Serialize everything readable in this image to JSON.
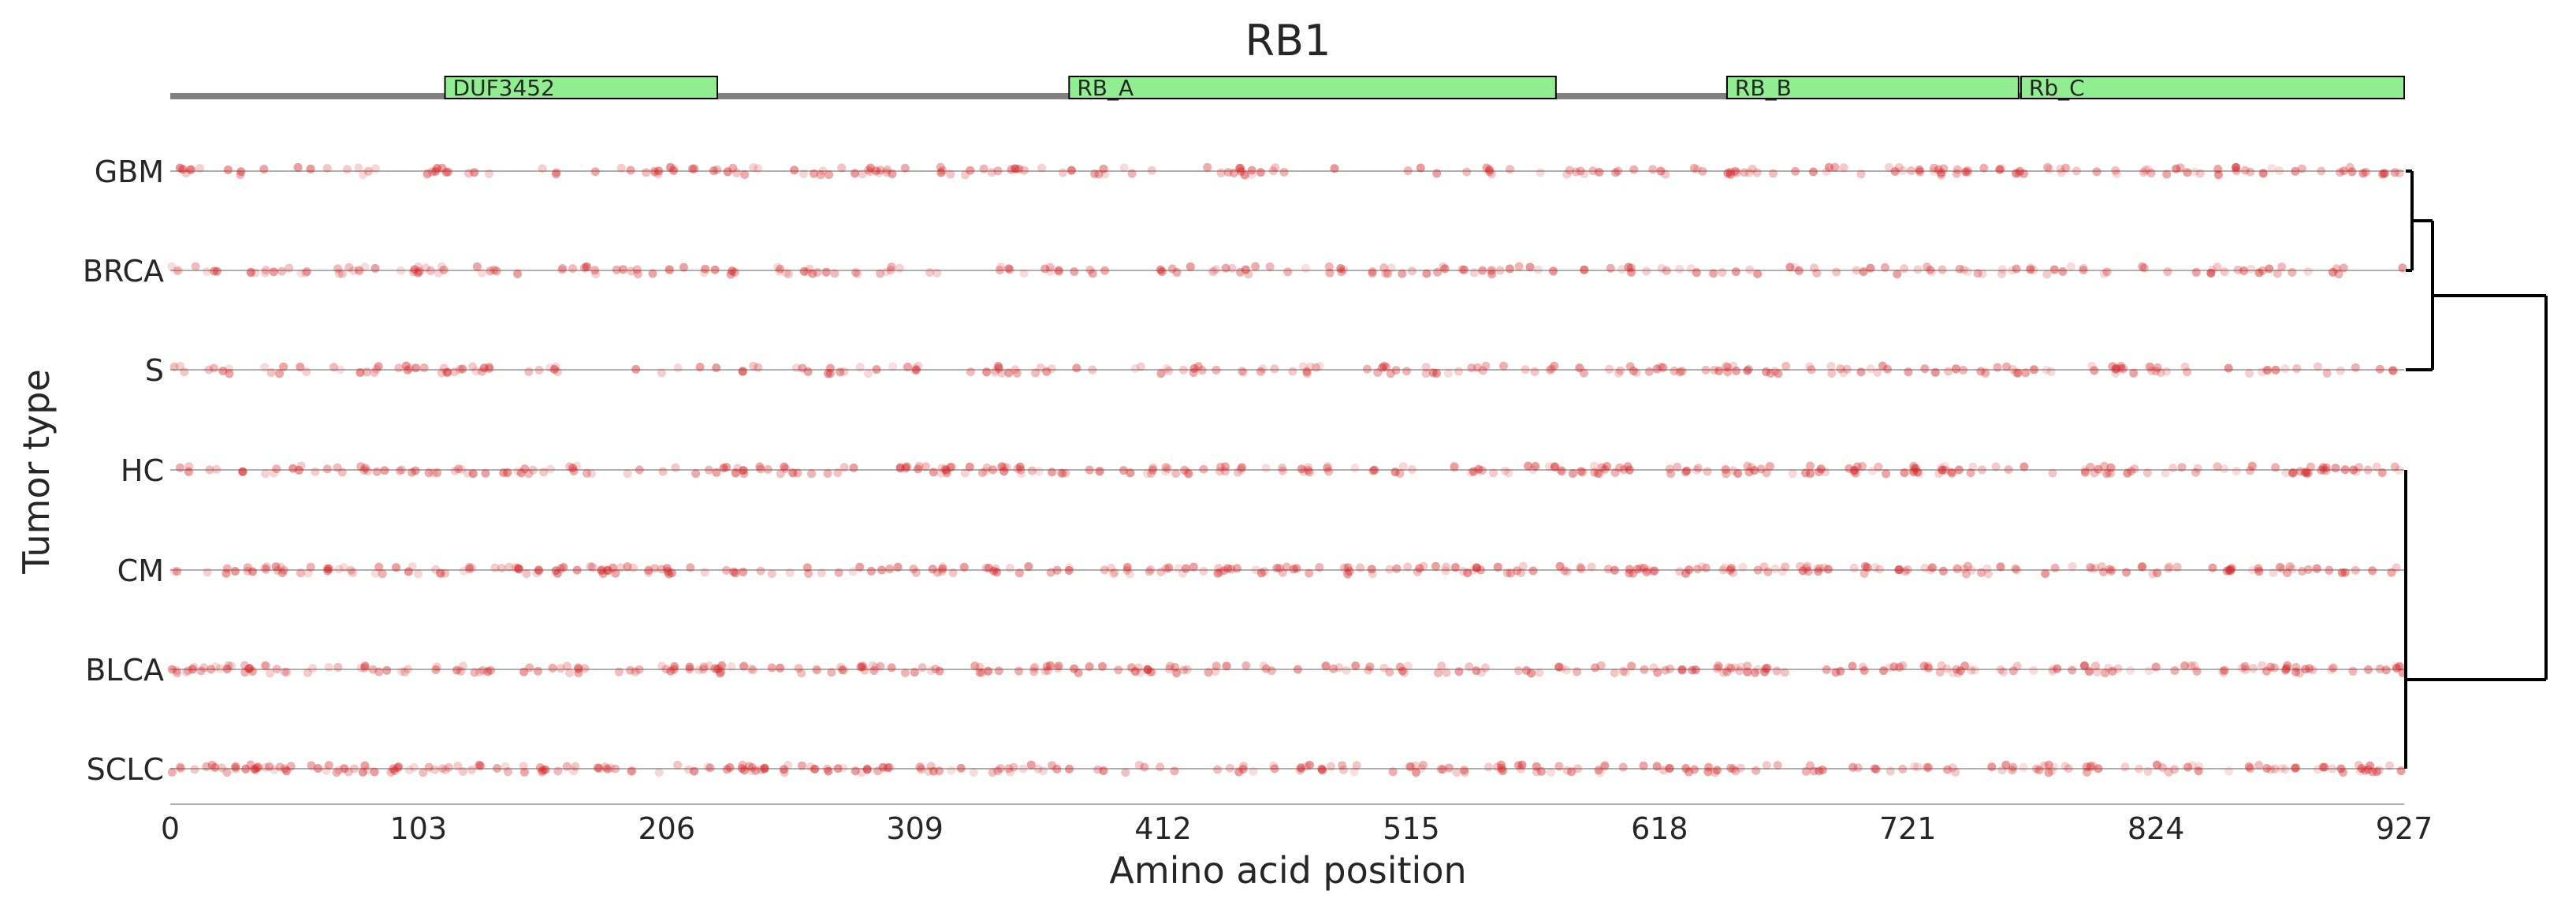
{
  "chart_data": {
    "type": "scatter",
    "title": "RB1",
    "xlabel": "Amino acid position",
    "ylabel": "Tumor type",
    "xlim": [
      0,
      927
    ],
    "xticks": [
      "0",
      "103",
      "206",
      "309",
      "412",
      "515",
      "618",
      "721",
      "824",
      "927"
    ],
    "grid": false,
    "legend": "none",
    "colors": {
      "point": "#d62728",
      "domain_fill": "#90ee90",
      "backbone": "#808080",
      "dendrogram": "#000000"
    },
    "protein_domains": [
      {
        "name": "DUF3452",
        "start": 114,
        "end": 227
      },
      {
        "name": "RB_A",
        "start": 373,
        "end": 575
      },
      {
        "name": "RB_B",
        "start": 646,
        "end": 767
      },
      {
        "name": "Rb_C",
        "start": 768,
        "end": 927
      }
    ],
    "tumor_types": [
      "GBM",
      "BRCA",
      "S",
      "HC",
      "CM",
      "BLCA",
      "SCLC"
    ],
    "dendrogram": {
      "leaf_order": [
        "GBM",
        "BRCA",
        "S",
        "HC",
        "CM",
        "BLCA",
        "SCLC"
      ],
      "merges": [
        {
          "left": "HC",
          "right": "CM",
          "height": 0.0
        },
        {
          "left": "HC+CM",
          "right": "BLCA",
          "height": 0.0
        },
        {
          "left": "HC+CM+BLCA",
          "right": "SCLC",
          "height": 0.0
        },
        {
          "left": "GBM",
          "right": "BRCA",
          "height": 0.5
        },
        {
          "left": "GBM+BRCA",
          "right": "S",
          "height": 1.4
        },
        {
          "left": "GBM+BRCA+S",
          "right": "HC+CM+BLCA+SCLC",
          "height": 6.0
        }
      ]
    },
    "mutation_density_note_free": true,
    "series": [
      {
        "tumor": "GBM",
        "points_per_row": 230
      },
      {
        "tumor": "BRCA",
        "points_per_row": 230
      },
      {
        "tumor": "S",
        "points_per_row": 230
      },
      {
        "tumor": "HC",
        "points_per_row": 300
      },
      {
        "tumor": "CM",
        "points_per_row": 300
      },
      {
        "tumor": "BLCA",
        "points_per_row": 300
      },
      {
        "tumor": "SCLC",
        "points_per_row": 300
      }
    ]
  }
}
